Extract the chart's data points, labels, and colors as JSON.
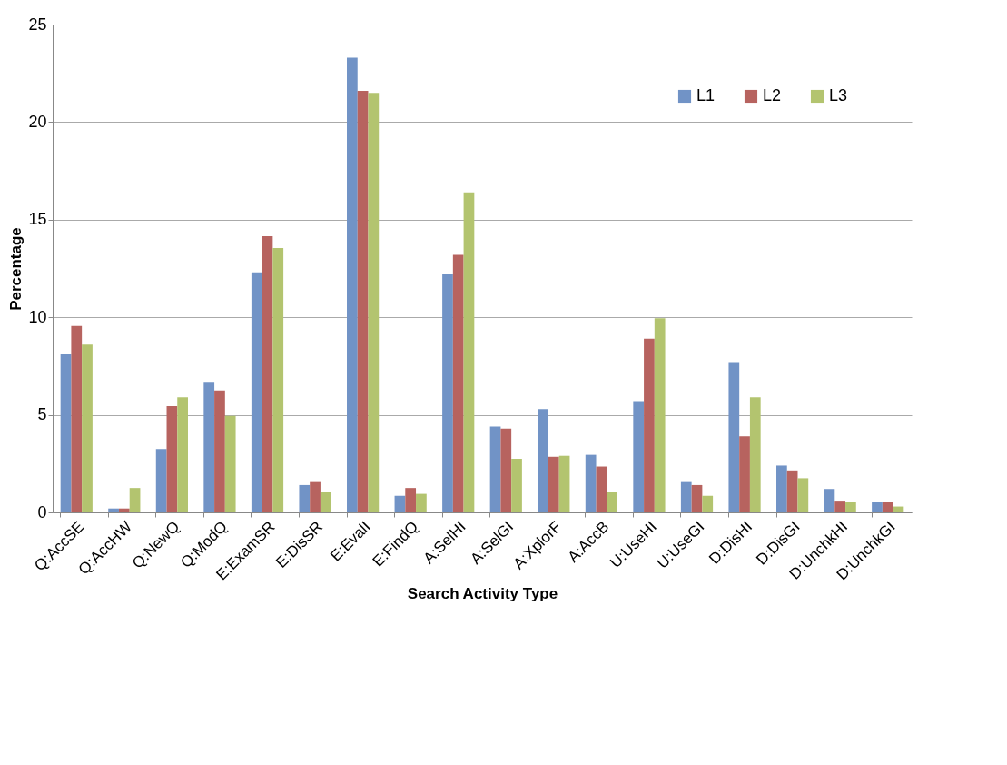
{
  "chart_data": {
    "type": "bar",
    "xlabel": "Search Activity Type",
    "ylabel": "Percentage",
    "categories": [
      "Q:AccSE",
      "Q:AccHW",
      "Q:NewQ",
      "Q:ModQ",
      "E:ExamSR",
      "E:DisSR",
      "E:EvalI",
      "E:FindQ",
      "A:SelHI",
      "A:SelGI",
      "A:XplorF",
      "A:AccB",
      "U:UseHI",
      "U:UseGI",
      "D:DisHI",
      "D:DisGI",
      "D:UnchkHI",
      "D:UnchkGI"
    ],
    "series": [
      {
        "name": "L1",
        "color": "#7193c6",
        "values": [
          8.1,
          0.2,
          3.25,
          6.65,
          12.3,
          1.4,
          23.3,
          0.85,
          12.2,
          4.4,
          5.3,
          2.95,
          5.7,
          1.6,
          7.7,
          2.4,
          1.2,
          0.55
        ]
      },
      {
        "name": "L2",
        "color": "#b7635f",
        "values": [
          9.55,
          0.2,
          5.45,
          6.25,
          14.15,
          1.6,
          21.6,
          1.25,
          13.2,
          4.3,
          2.85,
          2.35,
          8.9,
          1.4,
          3.9,
          2.15,
          0.6,
          0.55
        ]
      },
      {
        "name": "L3",
        "color": "#b3c46f",
        "values": [
          8.6,
          1.25,
          5.9,
          4.95,
          13.55,
          1.05,
          21.5,
          0.95,
          16.4,
          2.75,
          2.9,
          1.05,
          9.95,
          0.85,
          5.9,
          1.75,
          0.55,
          0.3
        ]
      }
    ],
    "ylim": [
      0,
      25
    ],
    "yticks": [
      0,
      5,
      10,
      15,
      20,
      25
    ],
    "grid": "y",
    "legend": "top right"
  }
}
